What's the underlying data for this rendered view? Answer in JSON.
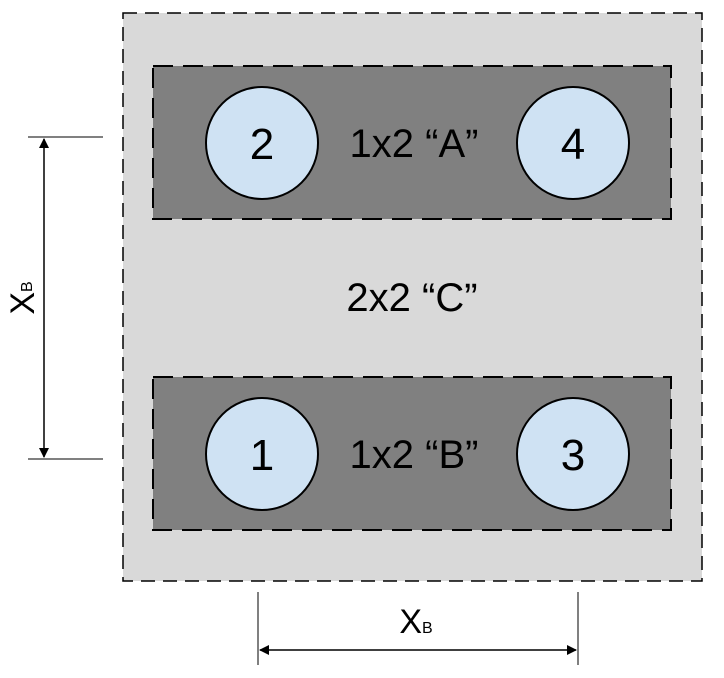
{
  "diagram": {
    "outer_box": {
      "label": "2x2 “C”",
      "fill": "#d9d9d9"
    },
    "inner_boxes": [
      {
        "label": "1x2 “A”",
        "fill": "#808080"
      },
      {
        "label": "1x2 “B”",
        "fill": "#808080"
      }
    ],
    "circles": [
      {
        "label": "2",
        "fill": "#cfe2f3"
      },
      {
        "label": "4",
        "fill": "#cfe2f3"
      },
      {
        "label": "1",
        "fill": "#cfe2f3"
      },
      {
        "label": "3",
        "fill": "#cfe2f3"
      }
    ],
    "dimensions": {
      "vertical": {
        "main": "X",
        "sub": "B"
      },
      "horizontal": {
        "main": "X",
        "sub": "B"
      }
    }
  }
}
